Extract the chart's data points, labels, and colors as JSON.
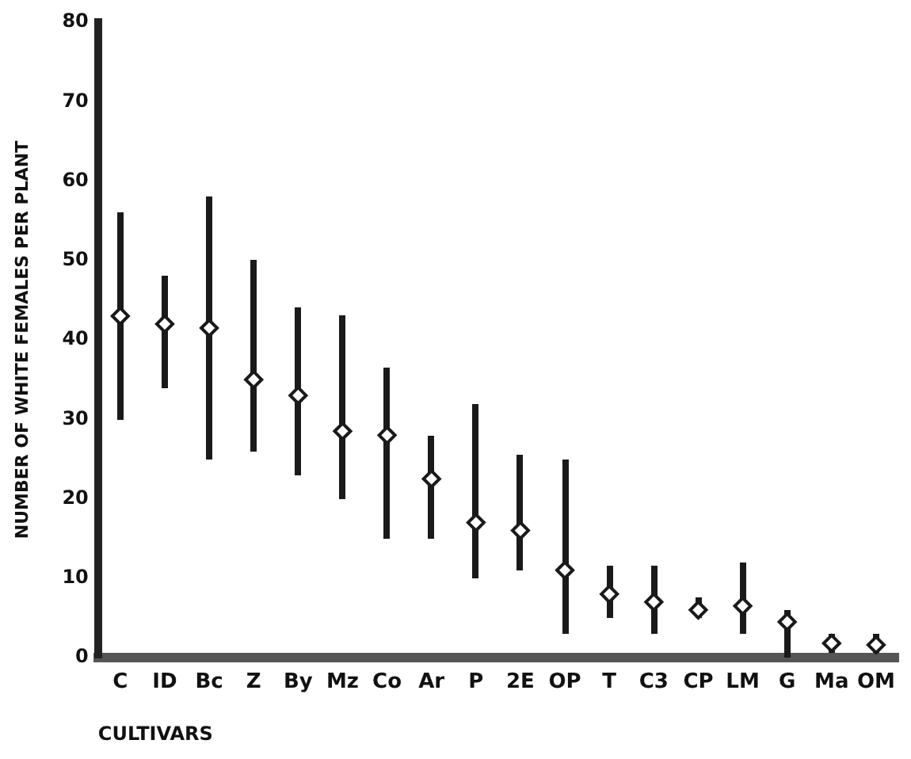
{
  "chart_data": {
    "type": "scatter",
    "xlabel": "CULTIVARS",
    "ylabel": "NUMBER OF WHITE FEMALES PER PLANT",
    "categories": [
      "C",
      "ID",
      "Bc",
      "Z",
      "By",
      "Mz",
      "Co",
      "Ar",
      "P",
      "2E",
      "OP",
      "T",
      "C3",
      "CP",
      "LM",
      "G",
      "Ma",
      "OM"
    ],
    "values": [
      43,
      42,
      41.5,
      35,
      33,
      28.5,
      28,
      22.5,
      17,
      16,
      11,
      8,
      7,
      6,
      6.5,
      4.5,
      1.8,
      1.6
    ],
    "errors": [
      [
        30,
        56
      ],
      [
        34,
        48
      ],
      [
        25,
        58
      ],
      [
        26,
        50
      ],
      [
        23,
        44
      ],
      [
        20,
        43
      ],
      [
        15,
        36.5
      ],
      [
        15,
        28
      ],
      [
        10,
        32
      ],
      [
        11,
        25.5
      ],
      [
        3,
        25
      ],
      [
        5,
        11.5
      ],
      [
        3,
        11.5
      ],
      [
        5,
        7.5
      ],
      [
        3,
        12
      ],
      [
        0,
        6
      ],
      [
        0.5,
        3
      ],
      [
        0.5,
        3
      ]
    ],
    "color": "#1a1a1a",
    "marker": "diamond",
    "ylim": [
      0,
      80
    ],
    "yticks": [
      0,
      10,
      20,
      30,
      40,
      50,
      60,
      70,
      80
    ],
    "grid": false,
    "legend": false
  }
}
